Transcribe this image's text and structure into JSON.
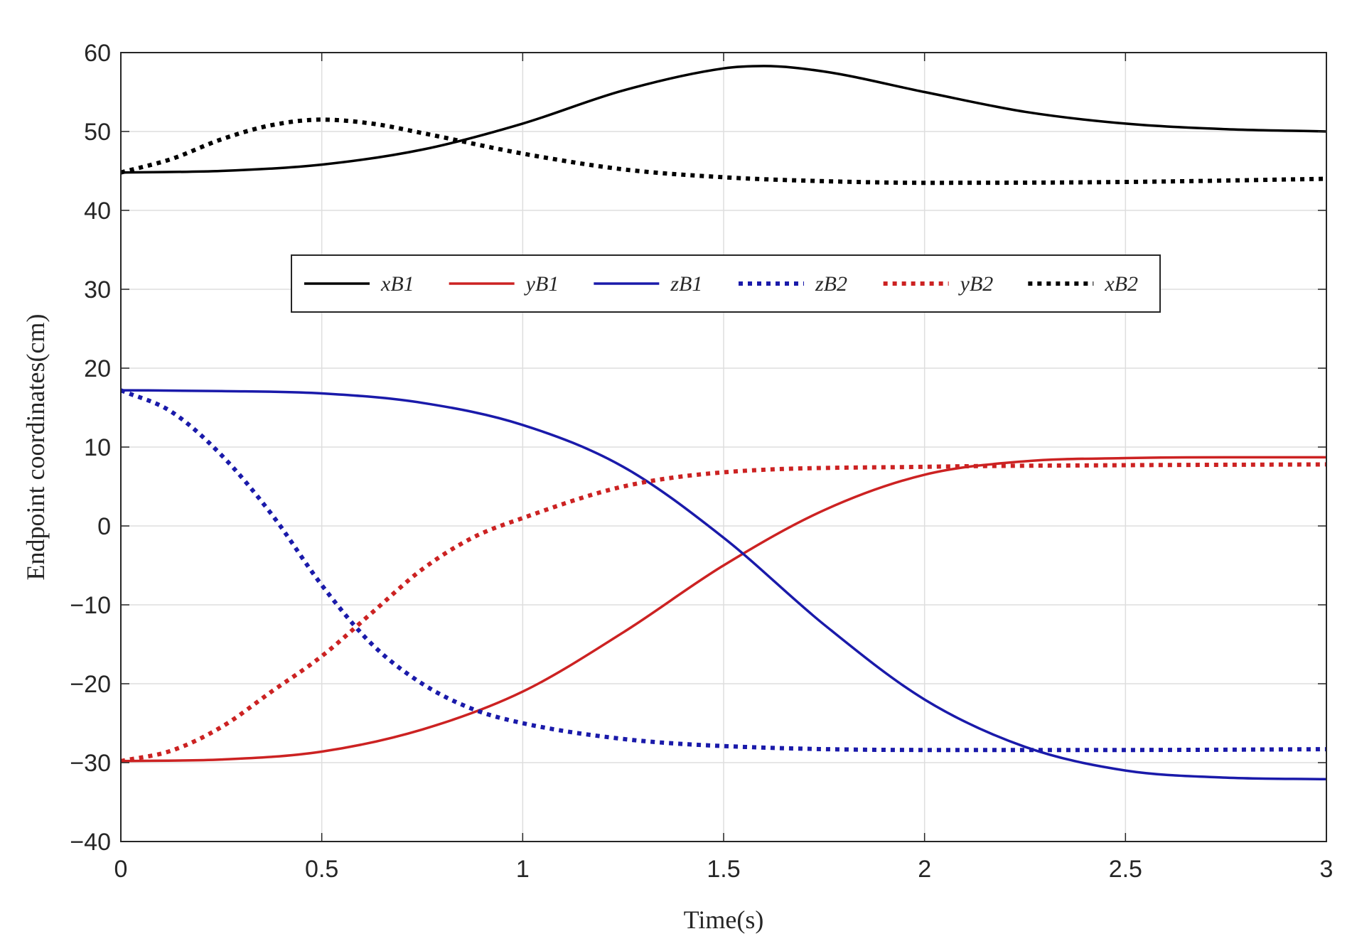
{
  "chart_data": {
    "type": "line",
    "title": "",
    "xlabel": "Time(s)",
    "ylabel": "Endpoint coordinates(cm)",
    "xlim": [
      0,
      3
    ],
    "ylim": [
      -40,
      60
    ],
    "xticks": [
      0,
      0.5,
      1,
      1.5,
      2,
      2.5,
      3
    ],
    "yticks": [
      -40,
      -30,
      -20,
      -10,
      0,
      10,
      20,
      30,
      40,
      50,
      60
    ],
    "xtick_labels": [
      "0",
      "0.5",
      "1",
      "1.5",
      "2",
      "2.5",
      "3"
    ],
    "ytick_labels": [
      "−40",
      "−30",
      "−20",
      "−10",
      "0",
      "10",
      "20",
      "30",
      "40",
      "50",
      "60"
    ],
    "grid": true,
    "legend_position": "upper-center, horizontal",
    "series": [
      {
        "name": "xB1",
        "color": "#000000",
        "style": "solid",
        "x": [
          0,
          0.25,
          0.5,
          0.75,
          1.0,
          1.25,
          1.5,
          1.6,
          1.75,
          2.0,
          2.25,
          2.5,
          2.75,
          3.0
        ],
        "y": [
          44.8,
          45.0,
          45.8,
          47.7,
          51.0,
          55.2,
          58.0,
          58.3,
          57.6,
          55.0,
          52.5,
          51.0,
          50.3,
          50.0
        ]
      },
      {
        "name": "yB1",
        "color": "#cc2222",
        "style": "solid",
        "x": [
          0,
          0.25,
          0.5,
          0.75,
          1.0,
          1.25,
          1.5,
          1.75,
          2.0,
          2.25,
          2.5,
          2.75,
          3.0
        ],
        "y": [
          -29.8,
          -29.6,
          -28.6,
          -25.8,
          -21.0,
          -13.5,
          -5.0,
          2.0,
          6.5,
          8.2,
          8.6,
          8.7,
          8.7
        ]
      },
      {
        "name": "zB1",
        "color": "#1a1aaa",
        "style": "solid",
        "x": [
          0,
          0.25,
          0.5,
          0.75,
          1.0,
          1.25,
          1.5,
          1.75,
          2.0,
          2.25,
          2.5,
          2.75,
          3.0
        ],
        "y": [
          17.2,
          17.1,
          16.8,
          15.6,
          12.8,
          7.5,
          -1.5,
          -12.5,
          -22.0,
          -28.0,
          -31.0,
          -31.9,
          -32.1
        ]
      },
      {
        "name": "zB2",
        "color": "#1a1aaa",
        "style": "dotted",
        "x": [
          0,
          0.125,
          0.25,
          0.375,
          0.5,
          0.625,
          0.75,
          0.875,
          1.0,
          1.25,
          1.5,
          2.0,
          2.5,
          3.0
        ],
        "y": [
          17.2,
          14.5,
          9.0,
          1.5,
          -7.5,
          -15.0,
          -20.0,
          -23.2,
          -25.0,
          -27.0,
          -27.9,
          -28.4,
          -28.4,
          -28.3
        ]
      },
      {
        "name": "yB2",
        "color": "#cc2222",
        "style": "dotted",
        "x": [
          0,
          0.125,
          0.25,
          0.375,
          0.5,
          0.625,
          0.75,
          0.875,
          1.0,
          1.25,
          1.5,
          2.0,
          2.5,
          3.0
        ],
        "y": [
          -29.8,
          -28.5,
          -25.5,
          -21.0,
          -16.5,
          -11.0,
          -5.5,
          -1.5,
          1.0,
          5.0,
          6.8,
          7.5,
          7.7,
          7.8
        ]
      },
      {
        "name": "xB2",
        "color": "#000000",
        "style": "dotted",
        "x": [
          0,
          0.125,
          0.25,
          0.375,
          0.5,
          0.625,
          0.75,
          1.0,
          1.25,
          1.5,
          1.75,
          2.0,
          2.5,
          3.0
        ],
        "y": [
          44.8,
          46.5,
          49.0,
          50.8,
          51.5,
          51.0,
          49.8,
          47.2,
          45.2,
          44.2,
          43.7,
          43.5,
          43.6,
          44.0
        ]
      }
    ]
  }
}
